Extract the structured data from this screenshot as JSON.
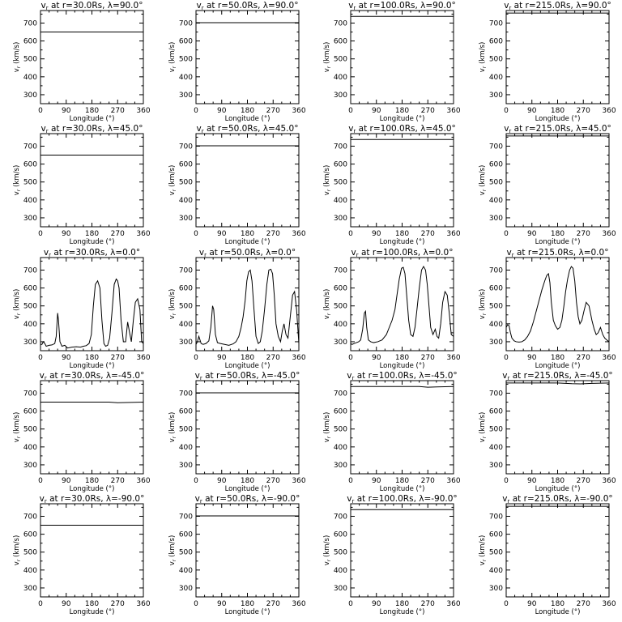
{
  "chart_data": {
    "type": "line",
    "layout_rows": 5,
    "layout_cols": 4,
    "xlabel": "Longitude (°)",
    "ylabel": "v<sub>r</sub> (km/s)",
    "ylabel_text": "v",
    "ylabel_sub": "r",
    "ylabel_rest": " (km/s)",
    "xlim": [
      0,
      360
    ],
    "ylim": [
      250,
      770
    ],
    "xticks": [
      0,
      90,
      180,
      270,
      360
    ],
    "yticks": [
      300,
      400,
      500,
      600,
      700
    ],
    "grid": false,
    "line_color": "#000000",
    "panels": [
      {
        "title": "vr at r=30.0Rs, λ=90.0°",
        "t_pre": "v",
        "t_sub": "r",
        "t_post": " at r=30.0Rs, λ=90.0°",
        "x": [
          0,
          360
        ],
        "y": [
          650,
          650
        ]
      },
      {
        "title": "vr at r=50.0Rs, λ=90.0°",
        "t_pre": "v",
        "t_sub": "r",
        "t_post": " at r=50.0Rs, λ=90.0°",
        "x": [
          0,
          360
        ],
        "y": [
          702,
          702
        ]
      },
      {
        "title": "vr at r=100.0Rs, λ=90.0°",
        "t_pre": "v",
        "t_sub": "r",
        "t_post": " at r=100.0Rs, λ=90.0°",
        "x": [
          0,
          360
        ],
        "y": [
          737,
          737
        ]
      },
      {
        "title": "vr at r=215.0Rs, λ=90.0°",
        "t_pre": "v",
        "t_sub": "r",
        "t_post": " at r=215.0Rs, λ=90.0°",
        "x": [
          0,
          360
        ],
        "y": [
          756,
          756
        ]
      },
      {
        "title": "vr at r=30.0Rs, λ=45.0°",
        "t_pre": "v",
        "t_sub": "r",
        "t_post": " at r=30.0Rs, λ=45.0°",
        "x": [
          0,
          360
        ],
        "y": [
          650,
          650
        ]
      },
      {
        "title": "vr at r=50.0Rs, λ=45.0°",
        "t_pre": "v",
        "t_sub": "r",
        "t_post": " at r=50.0Rs, λ=45.0°",
        "x": [
          0,
          360
        ],
        "y": [
          702,
          702
        ]
      },
      {
        "title": "vr at r=100.0Rs, λ=45.0°",
        "t_pre": "v",
        "t_sub": "r",
        "t_post": " at r=100.0Rs, λ=45.0°",
        "x": [
          0,
          360
        ],
        "y": [
          737,
          737
        ]
      },
      {
        "title": "vr at r=215.0Rs, λ=45.0°",
        "t_pre": "v",
        "t_sub": "r",
        "t_post": " at r=215.0Rs, λ=45.0°",
        "x": [
          0,
          360
        ],
        "y": [
          757,
          757
        ]
      },
      {
        "title": "vr at r=30.0Rs, λ=0.0°",
        "t_pre": "v",
        "t_sub": "r",
        "t_post": " at r=30.0Rs, λ=0.0°",
        "x": [
          0,
          5,
          10,
          15,
          20,
          30,
          40,
          50,
          55,
          60,
          63,
          68,
          75,
          85,
          95,
          110,
          125,
          140,
          150,
          160,
          170,
          178,
          185,
          192,
          200,
          208,
          215,
          222,
          228,
          235,
          242,
          250,
          258,
          265,
          270,
          275,
          282,
          290,
          298,
          305,
          312,
          318,
          325,
          332,
          340,
          348,
          354,
          360
        ],
        "y": [
          285,
          285,
          300,
          290,
          275,
          280,
          282,
          290,
          330,
          460,
          420,
          300,
          275,
          280,
          265,
          270,
          272,
          270,
          275,
          278,
          290,
          340,
          500,
          620,
          640,
          600,
          420,
          290,
          275,
          280,
          320,
          460,
          620,
          650,
          640,
          600,
          420,
          300,
          300,
          410,
          350,
          300,
          420,
          520,
          540,
          480,
          300,
          290
        ]
      },
      {
        "title": "vr at r=50.0Rs, λ=0.0°",
        "t_pre": "v",
        "t_sub": "r",
        "t_post": " at r=50.0Rs, λ=0.0°",
        "x": [
          0,
          5,
          10,
          18,
          25,
          35,
          45,
          52,
          58,
          62,
          68,
          75,
          85,
          100,
          115,
          130,
          140,
          150,
          158,
          165,
          172,
          178,
          184,
          190,
          196,
          203,
          210,
          218,
          225,
          232,
          240,
          248,
          255,
          262,
          268,
          274,
          280,
          288,
          296,
          302,
          308,
          315,
          322,
          330,
          338,
          345,
          352,
          360
        ],
        "y": [
          285,
          300,
          330,
          290,
          285,
          290,
          305,
          380,
          500,
          480,
          340,
          295,
          290,
          285,
          280,
          288,
          300,
          330,
          380,
          440,
          530,
          640,
          690,
          700,
          640,
          480,
          330,
          290,
          300,
          360,
          480,
          620,
          700,
          705,
          680,
          560,
          400,
          330,
          300,
          360,
          400,
          340,
          320,
          440,
          560,
          580,
          480,
          290
        ]
      },
      {
        "title": "vr at r=100.0Rs, λ=0.0°",
        "t_pre": "v",
        "t_sub": "r",
        "t_post": " at r=100.0Rs, λ=0.0°",
        "x": [
          0,
          5,
          12,
          20,
          28,
          35,
          42,
          48,
          52,
          56,
          62,
          70,
          80,
          95,
          110,
          125,
          135,
          145,
          155,
          162,
          170,
          178,
          184,
          190,
          196,
          203,
          210,
          218,
          225,
          232,
          240,
          248,
          255,
          262,
          268,
          274,
          280,
          288,
          296,
          302,
          308,
          315,
          322,
          330,
          338,
          345,
          352,
          360
        ],
        "y": [
          290,
          285,
          290,
          295,
          300,
          310,
          370,
          460,
          470,
          380,
          310,
          300,
          295,
          300,
          310,
          340,
          380,
          420,
          480,
          560,
          650,
          710,
          715,
          680,
          560,
          420,
          340,
          330,
          380,
          480,
          600,
          700,
          720,
          700,
          620,
          500,
          380,
          340,
          370,
          330,
          320,
          400,
          520,
          580,
          560,
          460,
          340,
          330
        ]
      },
      {
        "title": "vr at r=215.0Rs, λ=0.0°",
        "t_pre": "v",
        "t_sub": "r",
        "t_post": " at r=215.0Rs, λ=0.0°",
        "x": [
          0,
          5,
          10,
          15,
          20,
          28,
          35,
          45,
          55,
          65,
          75,
          85,
          95,
          105,
          115,
          125,
          135,
          142,
          148,
          153,
          158,
          165,
          172,
          180,
          188,
          195,
          202,
          208,
          215,
          222,
          228,
          234,
          240,
          246,
          252,
          258,
          265,
          272,
          280,
          290,
          300,
          308,
          315,
          322,
          330,
          338,
          345,
          352,
          360
        ],
        "y": [
          380,
          395,
          390,
          350,
          320,
          305,
          300,
          298,
          300,
          310,
          330,
          360,
          410,
          470,
          530,
          590,
          640,
          670,
          680,
          630,
          520,
          420,
          390,
          370,
          380,
          420,
          500,
          580,
          650,
          700,
          720,
          710,
          640,
          520,
          440,
          400,
          420,
          470,
          520,
          500,
          420,
          370,
          340,
          350,
          380,
          340,
          320,
          310,
          300
        ]
      },
      {
        "title": "vr at r=30.0Rs, λ=-45.0°",
        "t_pre": "v",
        "t_sub": "r",
        "t_post": " at r=30.0Rs, λ=-45.0°",
        "x": [
          0,
          240,
          270,
          300,
          360
        ],
        "y": [
          650,
          650,
          647,
          648,
          650
        ]
      },
      {
        "title": "vr at r=50.0Rs, λ=-45.0°",
        "t_pre": "v",
        "t_sub": "r",
        "t_post": " at r=50.0Rs, λ=-45.0°",
        "x": [
          0,
          360
        ],
        "y": [
          702,
          702
        ]
      },
      {
        "title": "vr at r=100.0Rs, λ=-45.0°",
        "t_pre": "v",
        "t_sub": "r",
        "t_post": " at r=100.0Rs, λ=-45.0°",
        "x": [
          0,
          240,
          270,
          300,
          360
        ],
        "y": [
          737,
          737,
          733,
          735,
          737
        ]
      },
      {
        "title": "vr at r=215.0Rs, λ=-45.0°",
        "t_pre": "v",
        "t_sub": "r",
        "t_post": " at r=215.0Rs, λ=-45.0°",
        "x": [
          0,
          180,
          230,
          260,
          300,
          360
        ],
        "y": [
          757,
          757,
          753,
          752,
          755,
          757
        ]
      },
      {
        "title": "vr at r=30.0Rs, λ=-90.0°",
        "t_pre": "v",
        "t_sub": "r",
        "t_post": " at r=30.0Rs, λ=-90.0°",
        "x": [
          0,
          360
        ],
        "y": [
          650,
          650
        ]
      },
      {
        "title": "vr at r=50.0Rs, λ=-90.0°",
        "t_pre": "v",
        "t_sub": "r",
        "t_post": " at r=50.0Rs, λ=-90.0°",
        "x": [
          0,
          360
        ],
        "y": [
          702,
          702
        ]
      },
      {
        "title": "vr at r=100.0Rs, λ=-90.0°",
        "t_pre": "v",
        "t_sub": "r",
        "t_post": " at r=100.0Rs, λ=-90.0°",
        "x": [
          0,
          360
        ],
        "y": [
          737,
          737
        ]
      },
      {
        "title": "vr at r=215.0Rs, λ=-90.0°",
        "t_pre": "v",
        "t_sub": "r",
        "t_post": " at r=215.0Rs, λ=-90.0°",
        "x": [
          0,
          360
        ],
        "y": [
          756,
          756
        ]
      }
    ]
  }
}
